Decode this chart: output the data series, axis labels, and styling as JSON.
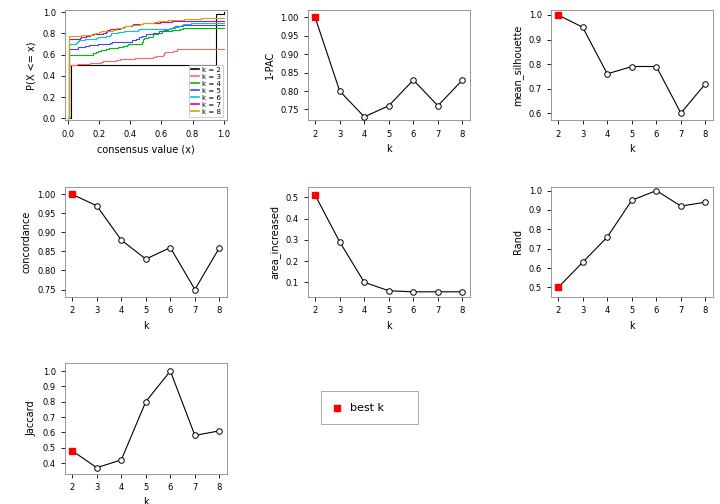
{
  "k_values": [
    2,
    3,
    4,
    5,
    6,
    7,
    8
  ],
  "pac_1": [
    1.0,
    0.8,
    0.73,
    0.76,
    0.83,
    0.76,
    0.83
  ],
  "mean_silhouette": [
    1.0,
    0.95,
    0.76,
    0.79,
    0.79,
    0.6,
    0.72
  ],
  "concordance": [
    1.0,
    0.97,
    0.88,
    0.83,
    0.86,
    0.75,
    0.86
  ],
  "area_increased": [
    0.51,
    0.29,
    0.1,
    0.06,
    0.055,
    0.055,
    0.055
  ],
  "rand": [
    0.5,
    0.63,
    0.76,
    0.95,
    1.0,
    0.92,
    0.94
  ],
  "jaccard": [
    0.48,
    0.37,
    0.42,
    0.8,
    1.0,
    0.58,
    0.61
  ],
  "ecdf_colors": [
    "#000000",
    "#FF6666",
    "#00BB00",
    "#4444FF",
    "#00CCCC",
    "#CC00CC",
    "#CCAA00"
  ],
  "ecdf_labels": [
    "k = 2",
    "k = 3",
    "k = 4",
    "k = 5",
    "k = 6",
    "k = 7",
    "k = 8"
  ],
  "bg_color": "#FFFFFF",
  "line_color": "#000000",
  "best_k_color": "#FF0000",
  "marker_size": 4,
  "line_width": 0.8,
  "font_size": 7,
  "axis_label_size": 7,
  "tick_label_size": 6
}
